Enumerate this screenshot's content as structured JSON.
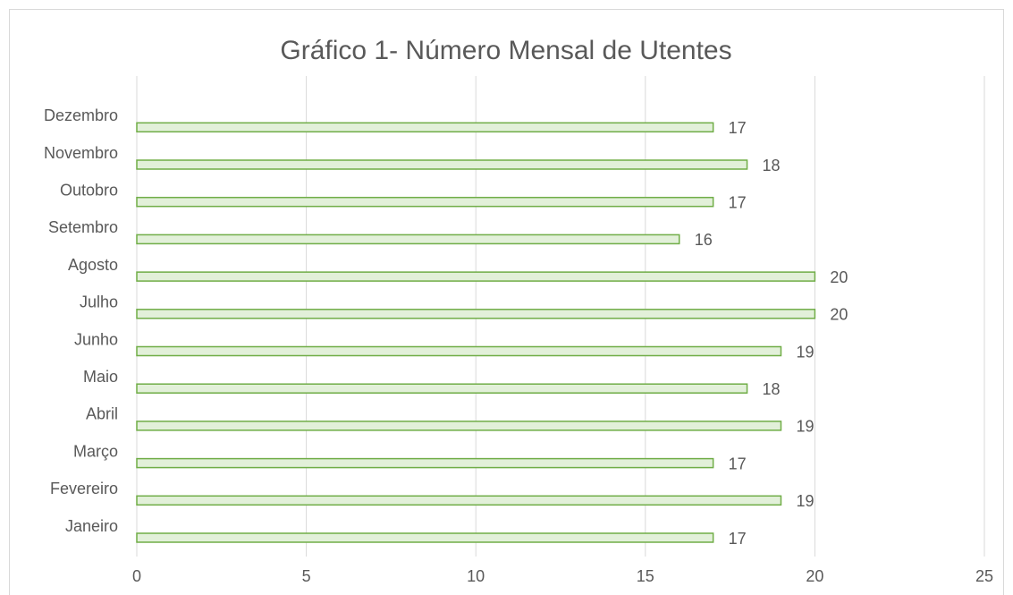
{
  "chart_data": {
    "type": "barh",
    "title": "Gráfico 1- Número Mensal de Utentes",
    "categories": [
      "Janeiro",
      "Fevereiro",
      "Março",
      "Abril",
      "Maio",
      "Junho",
      "Julho",
      "Agosto",
      "Setembro",
      "Outobro",
      "Novembro",
      "Dezembro"
    ],
    "values": [
      17,
      19,
      17,
      19,
      18,
      19,
      20,
      20,
      16,
      17,
      18,
      17
    ],
    "color": "#e2f0d9",
    "edge_color": "#70ad47",
    "xlim": [
      0,
      25
    ],
    "xticks": [
      0,
      5,
      10,
      15,
      20,
      25
    ],
    "grid": true
  }
}
